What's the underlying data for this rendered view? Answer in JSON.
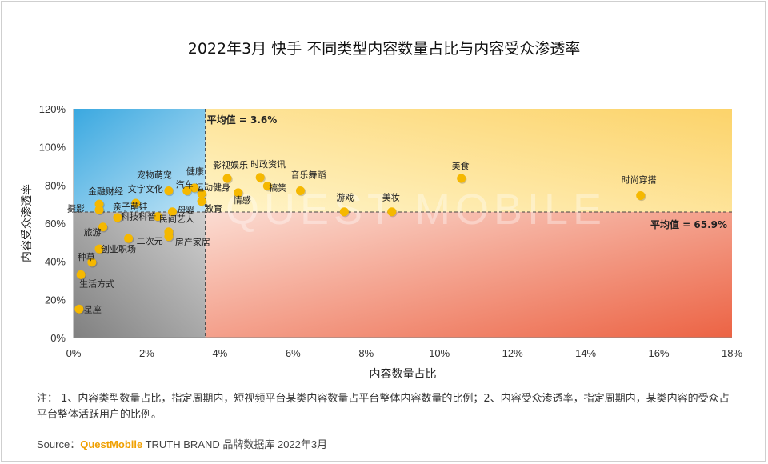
{
  "title": "2022年3月 快手 不同类型内容数量占比与内容受众渗透率",
  "note": "注： 1、内容类型数量占比，指定周期内，短视频平台某类内容数量占平台整体内容数量的比例；2、内容受众渗透率，指定周期内，某类内容的受众占平台整体活跃用户的比例。",
  "source": {
    "prefix": "Source：",
    "brand": "QuestMobile",
    "suffix": " TRUTH BRAND 品牌数据库 2022年3月"
  },
  "colors": {
    "point": "#f5b800",
    "top_left": "#49b3e4",
    "top_right": "#fde9a2",
    "bottom_right": "#ee6a4e",
    "bottom_left": "#9a9a9a"
  },
  "chart_data": {
    "type": "scatter",
    "xlabel": "内容数量占比",
    "ylabel": "内容受众渗透率",
    "xlim": [
      0,
      18
    ],
    "ylim": [
      0,
      120
    ],
    "x_ticks": [
      "0%",
      "2%",
      "4%",
      "6%",
      "8%",
      "10%",
      "12%",
      "14%",
      "16%",
      "18%"
    ],
    "y_ticks": [
      "0%",
      "20%",
      "40%",
      "60%",
      "80%",
      "100%",
      "120%"
    ],
    "avg_x": 3.6,
    "avg_y": 65.9,
    "avg_x_label": "平均值 = 3.6%",
    "avg_y_label": "平均值 = 65.9%",
    "points": [
      {
        "label": "美食",
        "x": 10.6,
        "y": 83.5
      },
      {
        "label": "时尚穿搭",
        "x": 15.5,
        "y": 74.5
      },
      {
        "label": "美妆",
        "x": 8.7,
        "y": 66.0
      },
      {
        "label": "游戏",
        "x": 7.4,
        "y": 66.0
      },
      {
        "label": "音乐舞蹈",
        "x": 6.2,
        "y": 77.0
      },
      {
        "label": "时政资讯",
        "x": 5.1,
        "y": 84.0
      },
      {
        "label": "搞笑",
        "x": 5.3,
        "y": 79.5
      },
      {
        "label": "情感",
        "x": 4.5,
        "y": 76.0
      },
      {
        "label": "影视娱乐",
        "x": 4.2,
        "y": 83.5
      },
      {
        "label": "运动健身",
        "x": 3.5,
        "y": 75.5
      },
      {
        "label": "健康",
        "x": 3.3,
        "y": 78.5
      },
      {
        "label": "教育",
        "x": 3.5,
        "y": 71.5
      },
      {
        "label": "汽车",
        "x": 3.1,
        "y": 77.0
      },
      {
        "label": "宠物萌宠",
        "x": 2.6,
        "y": 77.0
      },
      {
        "label": "文字文化",
        "x": 1.7,
        "y": 70.5
      },
      {
        "label": "母婴",
        "x": 2.7,
        "y": 66.0
      },
      {
        "label": "科技科普",
        "x": 2.3,
        "y": 63.5
      },
      {
        "label": "金融财经",
        "x": 0.7,
        "y": 70.0
      },
      {
        "label": "摄影",
        "x": 0.7,
        "y": 67.0
      },
      {
        "label": "民间艺人",
        "x": 2.6,
        "y": 55.5
      },
      {
        "label": "房产家居",
        "x": 2.6,
        "y": 53.0
      },
      {
        "label": "旅游",
        "x": 0.8,
        "y": 58.0
      },
      {
        "label": "亲子萌娃",
        "x": 1.2,
        "y": 63.0
      },
      {
        "label": "二次元",
        "x": 1.5,
        "y": 52.0
      },
      {
        "label": "创业职场",
        "x": 0.7,
        "y": 46.5
      },
      {
        "label": "种草",
        "x": 0.5,
        "y": 39.5
      },
      {
        "label": "生活方式",
        "x": 0.2,
        "y": 33.0
      },
      {
        "label": "星座",
        "x": 0.15,
        "y": 15.0
      }
    ]
  }
}
